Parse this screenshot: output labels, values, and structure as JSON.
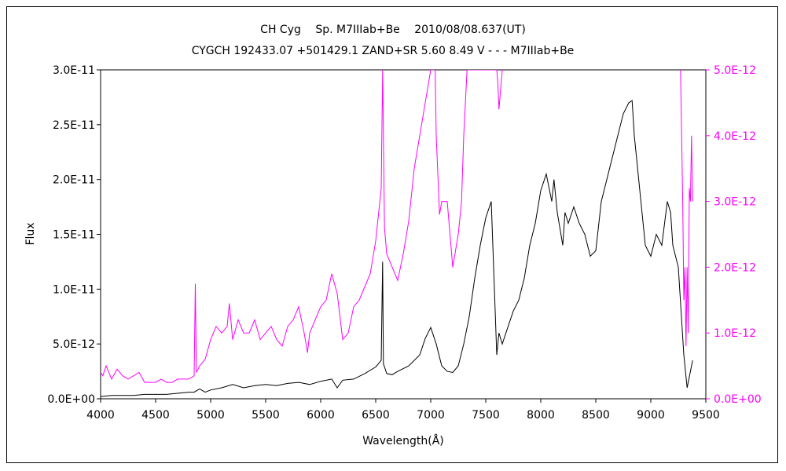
{
  "chart_data": {
    "type": "line",
    "title": "CH Cyg　 Sp. M7IIIab+Be　 2010/08/08.637(UT)",
    "subtitle": "CYGCH 192433.07 +501429.1 ZAND+SR 5.60 8.49 V - - - M7IIIab+Be",
    "xlabel": "Wavelength(Å)",
    "ylabel": "Flux",
    "y2label": "",
    "xlim": [
      4000,
      9500
    ],
    "ylim": [
      0,
      3e-11
    ],
    "y2lim": [
      0,
      5e-12
    ],
    "x_ticks": [
      "4000",
      "4500",
      "5000",
      "5500",
      "6000",
      "6500",
      "7000",
      "7500",
      "8000",
      "8500",
      "9000",
      "9500"
    ],
    "y_ticks": [
      "0.0E+00",
      "5.0E-12",
      "1.0E-11",
      "1.5E-11",
      "2.0E-11",
      "2.5E-11",
      "3.0E-11"
    ],
    "y2_ticks": [
      "0.0E+00",
      "1.0E-12",
      "2.0E-12",
      "3.0E-12",
      "4.0E-12",
      "5.0E-12"
    ],
    "grid": false,
    "colors": {
      "primary": "#000000",
      "secondary": "#ff00ff"
    },
    "series": [
      {
        "axis": "left",
        "color": "#000000",
        "x": [
          4000,
          4100,
          4200,
          4300,
          4400,
          4500,
          4600,
          4700,
          4800,
          4850,
          4900,
          4950,
          5000,
          5100,
          5200,
          5300,
          5400,
          5500,
          5600,
          5700,
          5800,
          5900,
          6000,
          6100,
          6150,
          6200,
          6300,
          6400,
          6500,
          6550,
          6563,
          6570,
          6600,
          6650,
          6700,
          6800,
          6900,
          6950,
          7000,
          7050,
          7100,
          7150,
          7200,
          7250,
          7300,
          7350,
          7400,
          7450,
          7500,
          7550,
          7600,
          7620,
          7650,
          7700,
          7750,
          7800,
          7850,
          7900,
          7950,
          8000,
          8050,
          8100,
          8120,
          8150,
          8200,
          8220,
          8250,
          8300,
          8350,
          8400,
          8450,
          8500,
          8550,
          8600,
          8650,
          8700,
          8750,
          8800,
          8830,
          8850,
          8900,
          8950,
          9000,
          9050,
          9100,
          9150,
          9180,
          9200,
          9250,
          9300,
          9330,
          9350,
          9380
        ],
        "y": [
          2e-13,
          3e-13,
          3e-13,
          3e-13,
          4e-13,
          4e-13,
          4e-13,
          5e-13,
          6e-13,
          6e-13,
          9e-13,
          6e-13,
          8e-13,
          1e-12,
          1.3e-12,
          1e-12,
          1.2e-12,
          1.3e-12,
          1.2e-12,
          1.4e-12,
          1.5e-12,
          1.3e-12,
          1.6e-12,
          1.8e-12,
          1e-12,
          1.7e-12,
          1.8e-12,
          2.3e-12,
          2.9e-12,
          3.5e-12,
          1.25e-11,
          3.2e-12,
          2.3e-12,
          2.2e-12,
          2.5e-12,
          3e-12,
          4e-12,
          5.5e-12,
          6.5e-12,
          5e-12,
          3e-12,
          2.5e-12,
          2.4e-12,
          3e-12,
          5e-12,
          7.5e-12,
          1.1e-11,
          1.4e-11,
          1.65e-11,
          1.8e-11,
          4e-12,
          6e-12,
          5e-12,
          6.5e-12,
          8e-12,
          9e-12,
          1.1e-11,
          1.4e-11,
          1.6e-11,
          1.9e-11,
          2.05e-11,
          1.8e-11,
          2e-11,
          1.7e-11,
          1.4e-11,
          1.7e-11,
          1.6e-11,
          1.75e-11,
          1.6e-11,
          1.5e-11,
          1.3e-11,
          1.35e-11,
          1.8e-11,
          2e-11,
          2.2e-11,
          2.4e-11,
          2.6e-11,
          2.7e-11,
          2.72e-11,
          2.4e-11,
          1.9e-11,
          1.4e-11,
          1.3e-11,
          1.5e-11,
          1.4e-11,
          1.8e-11,
          1.7e-11,
          1.4e-11,
          1.2e-11,
          4e-12,
          1e-12,
          2e-12,
          3.5e-12
        ]
      },
      {
        "axis": "right",
        "color": "#ff00ff",
        "x": [
          4000,
          4020,
          4050,
          4100,
          4150,
          4200,
          4250,
          4300,
          4350,
          4400,
          4450,
          4500,
          4550,
          4600,
          4650,
          4700,
          4750,
          4800,
          4850,
          4861,
          4870,
          4900,
          4950,
          5000,
          5050,
          5100,
          5150,
          5170,
          5200,
          5250,
          5300,
          5350,
          5400,
          5450,
          5500,
          5550,
          5600,
          5650,
          5700,
          5750,
          5800,
          5850,
          5880,
          5900,
          5950,
          6000,
          6050,
          6100,
          6150,
          6200,
          6250,
          6300,
          6350,
          6400,
          6450,
          6500,
          6550,
          6563,
          6580,
          6600,
          6650,
          6700,
          6750,
          6800,
          6850,
          6900,
          6950,
          7000,
          7020,
          7040,
          7050,
          7080,
          7100,
          7150,
          7200,
          7250,
          7280,
          7300,
          7330,
          7350,
          7400,
          7450,
          7500,
          7550,
          7600,
          7610,
          7620,
          7640,
          7650
        ],
        "y": [
          4e-13,
          3.5e-13,
          5e-13,
          3e-13,
          4.5e-13,
          3.5e-13,
          3e-13,
          3.5e-13,
          4e-13,
          2.5e-13,
          2.5e-13,
          2.5e-13,
          3e-13,
          2.5e-13,
          2.5e-13,
          3e-13,
          3e-13,
          3e-13,
          3.5e-13,
          1.75e-12,
          4e-13,
          5e-13,
          6e-13,
          9e-13,
          1.1e-12,
          1e-12,
          1.1e-12,
          1.45e-12,
          9e-13,
          1.2e-12,
          1e-12,
          1e-12,
          1.2e-12,
          9e-13,
          1e-12,
          1.1e-12,
          9e-13,
          8e-13,
          1.1e-12,
          1.2e-12,
          1.4e-12,
          1e-12,
          7e-13,
          1e-12,
          1.2e-12,
          1.4e-12,
          1.5e-12,
          1.9e-12,
          1.6e-12,
          9e-13,
          1e-12,
          1.4e-12,
          1.5e-12,
          1.7e-12,
          1.9e-12,
          2.4e-12,
          3.2e-12,
          5e-12,
          2.6e-12,
          2.2e-12,
          2e-12,
          1.8e-12,
          2.2e-12,
          2.7e-12,
          3.5e-12,
          4e-12,
          4.5e-12,
          5e-12,
          5e-12,
          5e-12,
          4e-12,
          2.8e-12,
          3e-12,
          3e-12,
          2e-12,
          2.5e-12,
          3e-12,
          4e-12,
          5e-12,
          5e-12,
          5e-12,
          5e-12,
          5e-12,
          5e-12,
          5e-12,
          4.8e-12,
          4.4e-12,
          4.8e-12,
          5e-12
        ]
      },
      {
        "axis": "right",
        "color": "#ff00ff",
        "x": [
          9270,
          9290,
          9300,
          9310,
          9320,
          9330,
          9340,
          9350,
          9360,
          9370,
          9380
        ],
        "y": [
          5e-12,
          3e-12,
          1.5e-12,
          2e-12,
          8e-13,
          2e-12,
          1e-12,
          3.2e-12,
          3e-12,
          4e-12,
          3e-12
        ]
      }
    ]
  }
}
